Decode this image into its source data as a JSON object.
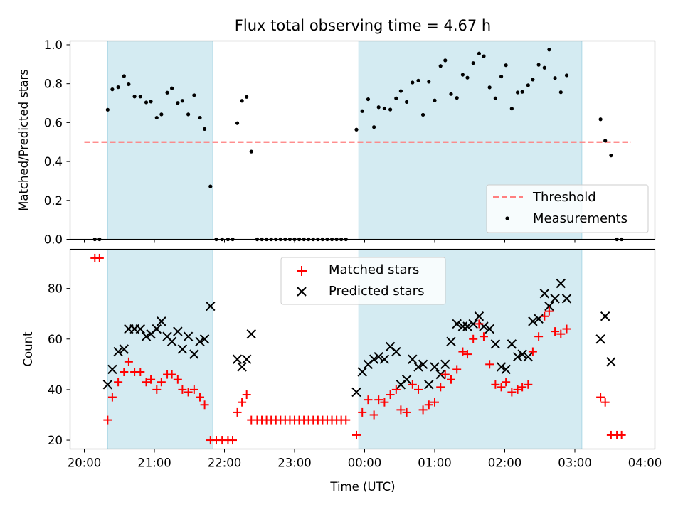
{
  "chart_data": [
    {
      "type": "scatter",
      "title": "Flux total observing time = 4.67 h",
      "ylabel": "Matched/Predicted stars",
      "xlabel": "",
      "ylim": [
        0,
        1.02
      ],
      "yticks": [
        "0.0",
        "0.2",
        "0.4",
        "0.6",
        "0.8",
        "1.0"
      ],
      "threshold": {
        "name": "Threshold",
        "value": 0.5,
        "x_range": [
          "20:00",
          "03:48"
        ],
        "color": "#ff7f7f"
      },
      "legend": {
        "position": "lower-right",
        "entries": [
          "Threshold",
          "Measurements"
        ]
      },
      "shaded_intervals": [
        [
          "20:20",
          "21:50"
        ],
        [
          "23:55",
          "03:06"
        ]
      ],
      "series": [
        {
          "name": "Measurements",
          "marker": "dot",
          "color": "#000000",
          "points": [
            [
              "20:09",
              0.0
            ],
            [
              "20:13",
              0.0
            ],
            [
              "20:20",
              0.666
            ],
            [
              "20:24",
              0.771
            ],
            [
              "20:29",
              0.782
            ],
            [
              "20:34",
              0.839
            ],
            [
              "20:38",
              0.797
            ],
            [
              "20:43",
              0.734
            ],
            [
              "20:48",
              0.734
            ],
            [
              "20:53",
              0.704
            ],
            [
              "20:57",
              0.708
            ],
            [
              "21:02",
              0.625
            ],
            [
              "21:06",
              0.642
            ],
            [
              "21:11",
              0.754
            ],
            [
              "21:15",
              0.776
            ],
            [
              "21:20",
              0.701
            ],
            [
              "21:24",
              0.712
            ],
            [
              "21:29",
              0.642
            ],
            [
              "21:34",
              0.741
            ],
            [
              "21:39",
              0.625
            ],
            [
              "21:43",
              0.567
            ],
            [
              "21:48",
              0.272
            ],
            [
              "21:53",
              0.0
            ],
            [
              "21:58",
              0.0
            ],
            [
              "22:03",
              0.0
            ],
            [
              "22:07",
              0.0
            ],
            [
              "22:11",
              0.597
            ],
            [
              "22:15",
              0.712
            ],
            [
              "22:19",
              0.732
            ],
            [
              "22:23",
              0.451
            ],
            [
              "22:28",
              0.0
            ],
            [
              "22:32",
              0.0
            ],
            [
              "22:36",
              0.0
            ],
            [
              "22:40",
              0.0
            ],
            [
              "22:44",
              0.0
            ],
            [
              "22:48",
              0.0
            ],
            [
              "22:52",
              0.0
            ],
            [
              "22:56",
              0.0
            ],
            [
              "23:00",
              0.0
            ],
            [
              "23:04",
              0.0
            ],
            [
              "23:08",
              0.0
            ],
            [
              "23:12",
              0.0
            ],
            [
              "23:16",
              0.0
            ],
            [
              "23:20",
              0.0
            ],
            [
              "23:24",
              0.0
            ],
            [
              "23:28",
              0.0
            ],
            [
              "23:32",
              0.0
            ],
            [
              "23:36",
              0.0
            ],
            [
              "23:40",
              0.0
            ],
            [
              "23:44",
              0.0
            ],
            [
              "23:53",
              0.564
            ],
            [
              "23:58",
              0.659
            ],
            [
              "00:03",
              0.72
            ],
            [
              "00:08",
              0.577
            ],
            [
              "00:12",
              0.679
            ],
            [
              "00:17",
              0.673
            ],
            [
              "00:22",
              0.667
            ],
            [
              "00:27",
              0.725
            ],
            [
              "00:31",
              0.762
            ],
            [
              "00:36",
              0.706
            ],
            [
              "00:41",
              0.806
            ],
            [
              "00:46",
              0.816
            ],
            [
              "00:50",
              0.64
            ],
            [
              "00:55",
              0.81
            ],
            [
              "01:00",
              0.714
            ],
            [
              "01:05",
              0.891
            ],
            [
              "01:09",
              0.92
            ],
            [
              "01:14",
              0.747
            ],
            [
              "01:19",
              0.727
            ],
            [
              "01:24",
              0.846
            ],
            [
              "01:28",
              0.831
            ],
            [
              "01:33",
              0.906
            ],
            [
              "01:38",
              0.955
            ],
            [
              "01:42",
              0.941
            ],
            [
              "01:47",
              0.781
            ],
            [
              "01:52",
              0.725
            ],
            [
              "01:57",
              0.837
            ],
            [
              "02:01",
              0.895
            ],
            [
              "02:06",
              0.672
            ],
            [
              "02:11",
              0.755
            ],
            [
              "02:15",
              0.758
            ],
            [
              "02:20",
              0.792
            ],
            [
              "02:24",
              0.821
            ],
            [
              "02:29",
              0.897
            ],
            [
              "02:34",
              0.882
            ],
            [
              "02:38",
              0.975
            ],
            [
              "02:43",
              0.829
            ],
            [
              "02:48",
              0.756
            ],
            [
              "02:53",
              0.843
            ],
            [
              "03:22",
              0.617
            ],
            [
              "03:26",
              0.507
            ],
            [
              "03:31",
              0.431
            ],
            [
              "03:36",
              0.0
            ],
            [
              "03:40",
              0.0
            ]
          ]
        }
      ]
    },
    {
      "type": "scatter",
      "title": "",
      "xlabel": "Time (UTC)",
      "ylabel": "Count",
      "ylim": [
        16.5,
        95.5
      ],
      "yticks": [
        "20",
        "40",
        "60",
        "80"
      ],
      "xticks": [
        "20:00",
        "21:00",
        "22:00",
        "23:00",
        "00:00",
        "01:00",
        "02:00",
        "03:00",
        "04:00"
      ],
      "legend": {
        "position": "upper-center",
        "entries": [
          "Matched stars",
          "Predicted stars"
        ]
      },
      "shaded_intervals": [
        [
          "20:20",
          "21:50"
        ],
        [
          "23:55",
          "03:06"
        ]
      ],
      "series": [
        {
          "name": "Matched stars",
          "marker": "plus",
          "color": "#ff0000",
          "points": [
            [
              "20:09",
              92
            ],
            [
              "20:13",
              92
            ],
            [
              "20:20",
              28
            ],
            [
              "20:24",
              37
            ],
            [
              "20:29",
              43
            ],
            [
              "20:34",
              47
            ],
            [
              "20:38",
              51
            ],
            [
              "20:43",
              47
            ],
            [
              "20:48",
              47
            ],
            [
              "20:53",
              43
            ],
            [
              "20:57",
              44
            ],
            [
              "21:02",
              40
            ],
            [
              "21:06",
              43
            ],
            [
              "21:11",
              46
            ],
            [
              "21:15",
              46
            ],
            [
              "21:20",
              44
            ],
            [
              "21:24",
              40
            ],
            [
              "21:29",
              39
            ],
            [
              "21:34",
              40
            ],
            [
              "21:39",
              37
            ],
            [
              "21:43",
              34
            ],
            [
              "21:48",
              20
            ],
            [
              "21:53",
              20
            ],
            [
              "21:58",
              20
            ],
            [
              "22:03",
              20
            ],
            [
              "22:07",
              20
            ],
            [
              "22:11",
              31
            ],
            [
              "22:15",
              35
            ],
            [
              "22:19",
              38
            ],
            [
              "22:23",
              28
            ],
            [
              "22:28",
              28
            ],
            [
              "22:32",
              28
            ],
            [
              "22:36",
              28
            ],
            [
              "22:40",
              28
            ],
            [
              "22:44",
              28
            ],
            [
              "22:48",
              28
            ],
            [
              "22:52",
              28
            ],
            [
              "22:56",
              28
            ],
            [
              "23:00",
              28
            ],
            [
              "23:04",
              28
            ],
            [
              "23:08",
              28
            ],
            [
              "23:12",
              28
            ],
            [
              "23:16",
              28
            ],
            [
              "23:20",
              28
            ],
            [
              "23:24",
              28
            ],
            [
              "23:28",
              28
            ],
            [
              "23:32",
              28
            ],
            [
              "23:36",
              28
            ],
            [
              "23:40",
              28
            ],
            [
              "23:44",
              28
            ],
            [
              "23:53",
              22
            ],
            [
              "23:58",
              31
            ],
            [
              "00:03",
              36
            ],
            [
              "00:08",
              30
            ],
            [
              "00:12",
              36
            ],
            [
              "00:17",
              35
            ],
            [
              "00:22",
              38
            ],
            [
              "00:27",
              40
            ],
            [
              "00:31",
              32
            ],
            [
              "00:36",
              31
            ],
            [
              "00:41",
              42
            ],
            [
              "00:46",
              40
            ],
            [
              "00:50",
              32
            ],
            [
              "00:55",
              34
            ],
            [
              "01:00",
              35
            ],
            [
              "01:05",
              41
            ],
            [
              "01:09",
              46
            ],
            [
              "01:14",
              44
            ],
            [
              "01:19",
              48
            ],
            [
              "01:24",
              55
            ],
            [
              "01:28",
              54
            ],
            [
              "01:33",
              60
            ],
            [
              "01:38",
              66
            ],
            [
              "01:42",
              61
            ],
            [
              "01:47",
              50
            ],
            [
              "01:52",
              42
            ],
            [
              "01:57",
              41
            ],
            [
              "02:01",
              43
            ],
            [
              "02:06",
              39
            ],
            [
              "02:11",
              40
            ],
            [
              "02:15",
              41
            ],
            [
              "02:20",
              42
            ],
            [
              "02:24",
              55
            ],
            [
              "02:29",
              61
            ],
            [
              "02:34",
              69
            ],
            [
              "02:38",
              71
            ],
            [
              "02:43",
              63
            ],
            [
              "02:48",
              62
            ],
            [
              "02:53",
              64
            ],
            [
              "03:22",
              37
            ],
            [
              "03:26",
              35
            ],
            [
              "03:31",
              22
            ],
            [
              "03:36",
              22
            ],
            [
              "03:40",
              22
            ]
          ]
        },
        {
          "name": "Predicted stars",
          "marker": "x",
          "color": "#000000",
          "points": [
            [
              "20:20",
              42
            ],
            [
              "20:24",
              48
            ],
            [
              "20:29",
              55
            ],
            [
              "20:34",
              56
            ],
            [
              "20:38",
              64
            ],
            [
              "20:43",
              64
            ],
            [
              "20:48",
              64
            ],
            [
              "20:53",
              61
            ],
            [
              "20:57",
              62
            ],
            [
              "21:02",
              64
            ],
            [
              "21:06",
              67
            ],
            [
              "21:11",
              61
            ],
            [
              "21:15",
              59
            ],
            [
              "21:20",
              63
            ],
            [
              "21:24",
              56
            ],
            [
              "21:29",
              61
            ],
            [
              "21:34",
              54
            ],
            [
              "21:39",
              59
            ],
            [
              "21:43",
              60
            ],
            [
              "21:48",
              73
            ],
            [
              "22:11",
              52
            ],
            [
              "22:15",
              49
            ],
            [
              "22:19",
              52
            ],
            [
              "22:23",
              62
            ],
            [
              "23:53",
              39
            ],
            [
              "23:58",
              47
            ],
            [
              "00:03",
              50
            ],
            [
              "00:08",
              52
            ],
            [
              "00:12",
              53
            ],
            [
              "00:17",
              52
            ],
            [
              "00:22",
              57
            ],
            [
              "00:27",
              55
            ],
            [
              "00:31",
              42
            ],
            [
              "00:36",
              44
            ],
            [
              "00:41",
              52
            ],
            [
              "00:46",
              49
            ],
            [
              "00:50",
              50
            ],
            [
              "00:55",
              42
            ],
            [
              "01:00",
              49
            ],
            [
              "01:05",
              46
            ],
            [
              "01:09",
              50
            ],
            [
              "01:14",
              59
            ],
            [
              "01:19",
              66
            ],
            [
              "01:24",
              65
            ],
            [
              "01:28",
              65
            ],
            [
              "01:33",
              66
            ],
            [
              "01:38",
              69
            ],
            [
              "01:42",
              65
            ],
            [
              "01:47",
              64
            ],
            [
              "01:52",
              58
            ],
            [
              "01:57",
              49
            ],
            [
              "02:01",
              48
            ],
            [
              "02:06",
              58
            ],
            [
              "02:11",
              53
            ],
            [
              "02:15",
              54
            ],
            [
              "02:20",
              53
            ],
            [
              "02:24",
              67
            ],
            [
              "02:29",
              68
            ],
            [
              "02:34",
              78
            ],
            [
              "02:38",
              73
            ],
            [
              "02:43",
              76
            ],
            [
              "02:48",
              82
            ],
            [
              "02:53",
              76
            ],
            [
              "03:22",
              60
            ],
            [
              "03:26",
              69
            ],
            [
              "03:31",
              51
            ]
          ]
        }
      ]
    }
  ],
  "colors": {
    "shade": "#add8e6",
    "threshold": "#ff7f7f",
    "matched": "#ff0000",
    "predicted": "#000000"
  }
}
